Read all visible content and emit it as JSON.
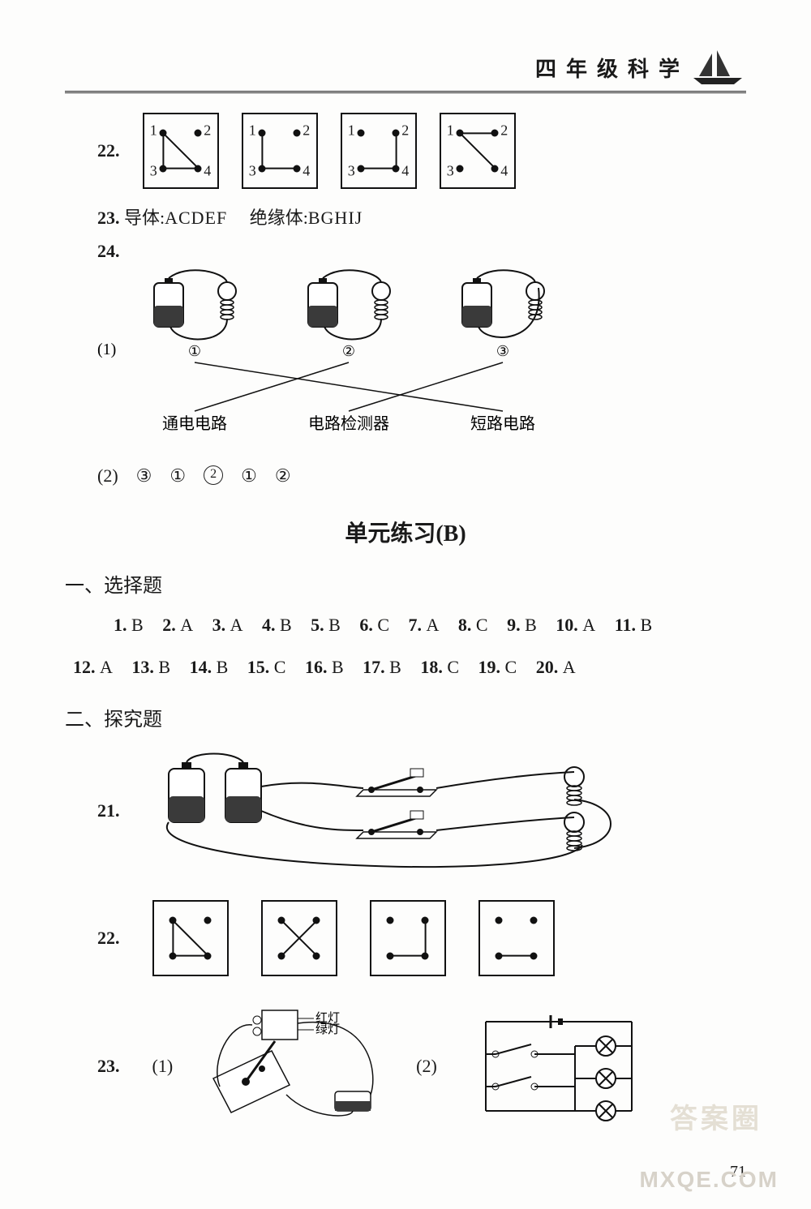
{
  "header": {
    "title": "四年级科学"
  },
  "q22": {
    "num": "22.",
    "boxes": [
      {
        "labels": [
          "1",
          "2",
          "3",
          "4"
        ],
        "lines": [
          [
            1,
            3
          ],
          [
            3,
            4
          ],
          [
            1,
            4
          ]
        ]
      },
      {
        "labels": [
          "1",
          "2",
          "3",
          "4"
        ],
        "lines": [
          [
            1,
            3
          ],
          [
            3,
            4
          ]
        ]
      },
      {
        "labels": [
          "1",
          "2",
          "3",
          "4"
        ],
        "lines": [
          [
            3,
            4
          ],
          [
            4,
            2
          ]
        ]
      },
      {
        "labels": [
          "1",
          "2",
          "3",
          "4"
        ],
        "lines": [
          [
            1,
            2
          ],
          [
            1,
            4
          ]
        ]
      }
    ],
    "box_border": "#111",
    "box_size": 90,
    "dot_color": "#111",
    "label_fontsize": 18
  },
  "q23": {
    "num": "23.",
    "lead": "导体:",
    "cond": "ACDEF",
    "lead2": "绝缘体:",
    "ins": "BGHIJ"
  },
  "q24": {
    "num": "24.",
    "circuit_count": 3,
    "battery_fill": "#3a3a3a",
    "bulb_color": "#111",
    "wire_color": "#111",
    "circN": [
      "①",
      "②",
      "③"
    ],
    "part1": "(1)",
    "labels": [
      "通电电路",
      "电路检测器",
      "短路电路"
    ],
    "cross": [
      [
        1,
        3
      ],
      [
        2,
        1
      ],
      [
        3,
        2
      ]
    ],
    "part2": "(2)",
    "ans2": [
      "③",
      "①",
      "②",
      "①",
      "②"
    ],
    "circled_idx": 2
  },
  "section": {
    "title": "单元练习",
    "paren": "(B)"
  },
  "secA": {
    "heading": "一、选择题",
    "answers": [
      {
        "n": "1.",
        "v": "B"
      },
      {
        "n": "2.",
        "v": "A"
      },
      {
        "n": "3.",
        "v": "A"
      },
      {
        "n": "4.",
        "v": "B"
      },
      {
        "n": "5.",
        "v": "B"
      },
      {
        "n": "6.",
        "v": "C"
      },
      {
        "n": "7.",
        "v": "A"
      },
      {
        "n": "8.",
        "v": "C"
      },
      {
        "n": "9.",
        "v": "B"
      },
      {
        "n": "10.",
        "v": "A"
      },
      {
        "n": "11.",
        "v": "B"
      },
      {
        "n": "12.",
        "v": "A"
      },
      {
        "n": "13.",
        "v": "B"
      },
      {
        "n": "14.",
        "v": "B"
      },
      {
        "n": "15.",
        "v": "C"
      },
      {
        "n": "16.",
        "v": "B"
      },
      {
        "n": "17.",
        "v": "B"
      },
      {
        "n": "18.",
        "v": "C"
      },
      {
        "n": "19.",
        "v": "C"
      },
      {
        "n": "20.",
        "v": "A"
      }
    ],
    "wrap_at": 11
  },
  "secB": {
    "heading": "二、探究题",
    "q21": {
      "num": "21.",
      "batteries": 2,
      "switches": 2,
      "bulbs": 2,
      "wire_color": "#111",
      "battery_fill": "#3a3a3a"
    },
    "q22": {
      "num": "22.",
      "boxes": [
        {
          "lines": [
            [
              1,
              3
            ],
            [
              3,
              4
            ],
            [
              1,
              4
            ]
          ]
        },
        {
          "lines": [
            [
              1,
              4
            ],
            [
              2,
              3
            ]
          ]
        },
        {
          "lines": [
            [
              3,
              4
            ],
            [
              4,
              2
            ]
          ]
        },
        {
          "lines": [
            [
              3,
              4
            ]
          ]
        }
      ],
      "box_size": 90
    },
    "q23": {
      "num": "23.",
      "p1": "(1)",
      "p2": "(2)",
      "anno": [
        "红灯",
        "绿灯"
      ],
      "wire_color": "#111"
    }
  },
  "page_number": "71",
  "watermarks": {
    "top": "答案圈",
    "bottom": "MXQE.COM"
  }
}
